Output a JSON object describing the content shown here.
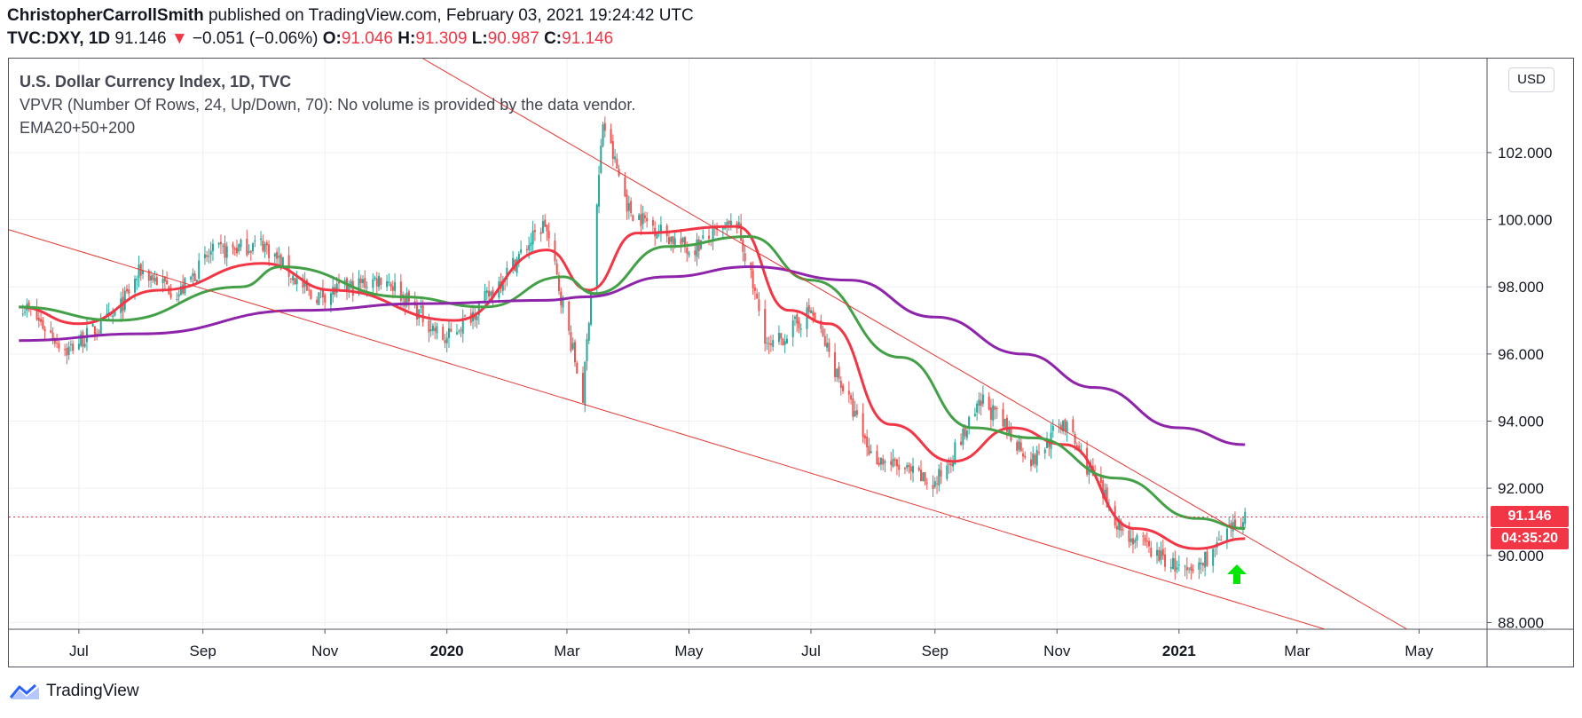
{
  "header": {
    "author": "ChristopherCarrollSmith",
    "published": "published on TradingView.com, February 03, 2021 19:24:42 UTC",
    "symbol": "TVC:DXY, 1D",
    "last": "91.146",
    "change_arrow": "▼",
    "change": "−0.051 (−0.06%)",
    "o_label": "O:",
    "o_value": "91.046",
    "h_label": "H:",
    "h_value": "91.309",
    "l_label": "L:",
    "l_value": "90.987",
    "c_label": "C:",
    "c_value": "91.146"
  },
  "legend": {
    "title": "U.S. Dollar Currency Index, 1D, TVC",
    "vpvr": "VPVR (Number Of Rows, 24, Up/Down, 70): No volume is provided by the data vendor.",
    "ema": "EMA20+50+200"
  },
  "currency_button": "USD",
  "price_tag": "91.146",
  "countdown_tag": "04:35:20",
  "brand": "TradingView",
  "colors": {
    "candle_up": "#26a69a",
    "candle_down": "#ef5350",
    "ema20": "#f23645",
    "ema50": "#43a047",
    "ema200": "#8e24aa",
    "trendline": "#e53935",
    "arrow": "#00e600"
  },
  "chart_data": {
    "type": "candlestick",
    "x_ticks": [
      "Jul",
      "Sep",
      "Nov",
      "2020",
      "Mar",
      "May",
      "Jul",
      "Sep",
      "Nov",
      "2021",
      "Mar",
      "May"
    ],
    "y_ticks": [
      "102.000",
      "100.000",
      "98.000",
      "96.000",
      "94.000",
      "92.000",
      "90.000",
      "88.000"
    ],
    "ylim": [
      87.8,
      104.8
    ],
    "close_approx": [
      {
        "date": "2019-06-01",
        "value": 97.6
      },
      {
        "date": "2019-06-25",
        "value": 96.1
      },
      {
        "date": "2019-07-20",
        "value": 97.2
      },
      {
        "date": "2019-08-01",
        "value": 98.5
      },
      {
        "date": "2019-08-20",
        "value": 97.8
      },
      {
        "date": "2019-09-05",
        "value": 99.0
      },
      {
        "date": "2019-10-01",
        "value": 99.3
      },
      {
        "date": "2019-10-25",
        "value": 97.7
      },
      {
        "date": "2019-11-15",
        "value": 98.0
      },
      {
        "date": "2019-12-01",
        "value": 98.3
      },
      {
        "date": "2019-12-31",
        "value": 96.4
      },
      {
        "date": "2020-01-20",
        "value": 97.6
      },
      {
        "date": "2020-02-19",
        "value": 99.9
      },
      {
        "date": "2020-03-09",
        "value": 94.7
      },
      {
        "date": "2020-03-19",
        "value": 102.9
      },
      {
        "date": "2020-04-01",
        "value": 100.3
      },
      {
        "date": "2020-05-01",
        "value": 99.1
      },
      {
        "date": "2020-05-25",
        "value": 99.9
      },
      {
        "date": "2020-06-10",
        "value": 96.1
      },
      {
        "date": "2020-07-01",
        "value": 97.3
      },
      {
        "date": "2020-07-31",
        "value": 93.0
      },
      {
        "date": "2020-09-01",
        "value": 92.1
      },
      {
        "date": "2020-09-25",
        "value": 94.6
      },
      {
        "date": "2020-10-20",
        "value": 92.8
      },
      {
        "date": "2020-11-04",
        "value": 94.0
      },
      {
        "date": "2020-12-04",
        "value": 90.7
      },
      {
        "date": "2021-01-06",
        "value": 89.4
      },
      {
        "date": "2021-02-03",
        "value": 91.146
      }
    ],
    "series": [
      {
        "name": "EMA20",
        "values": [
          {
            "date": "2019-06-01",
            "value": 97.4
          },
          {
            "date": "2019-07-01",
            "value": 96.9
          },
          {
            "date": "2019-08-10",
            "value": 97.9
          },
          {
            "date": "2019-10-01",
            "value": 98.7
          },
          {
            "date": "2019-11-05",
            "value": 97.9
          },
          {
            "date": "2020-01-05",
            "value": 97.0
          },
          {
            "date": "2020-02-20",
            "value": 99.1
          },
          {
            "date": "2020-03-12",
            "value": 97.9
          },
          {
            "date": "2020-04-05",
            "value": 99.6
          },
          {
            "date": "2020-05-25",
            "value": 99.8
          },
          {
            "date": "2020-06-20",
            "value": 97.3
          },
          {
            "date": "2020-07-10",
            "value": 96.9
          },
          {
            "date": "2020-08-10",
            "value": 93.9
          },
          {
            "date": "2020-09-10",
            "value": 92.8
          },
          {
            "date": "2020-10-10",
            "value": 93.8
          },
          {
            "date": "2020-11-05",
            "value": 93.3
          },
          {
            "date": "2020-12-10",
            "value": 90.8
          },
          {
            "date": "2021-01-10",
            "value": 90.2
          },
          {
            "date": "2021-02-03",
            "value": 90.5
          }
        ]
      },
      {
        "name": "EMA50",
        "values": [
          {
            "date": "2019-06-01",
            "value": 97.4
          },
          {
            "date": "2019-07-20",
            "value": 97.0
          },
          {
            "date": "2019-09-20",
            "value": 98.0
          },
          {
            "date": "2019-10-10",
            "value": 98.6
          },
          {
            "date": "2019-12-10",
            "value": 97.7
          },
          {
            "date": "2020-01-20",
            "value": 97.4
          },
          {
            "date": "2020-02-28",
            "value": 98.3
          },
          {
            "date": "2020-03-15",
            "value": 97.8
          },
          {
            "date": "2020-04-20",
            "value": 99.2
          },
          {
            "date": "2020-05-31",
            "value": 99.5
          },
          {
            "date": "2020-07-01",
            "value": 98.2
          },
          {
            "date": "2020-08-15",
            "value": 95.9
          },
          {
            "date": "2020-09-20",
            "value": 93.8
          },
          {
            "date": "2020-10-20",
            "value": 93.5
          },
          {
            "date": "2020-12-01",
            "value": 92.3
          },
          {
            "date": "2021-01-10",
            "value": 91.1
          },
          {
            "date": "2021-02-03",
            "value": 90.8
          }
        ]
      },
      {
        "name": "EMA200",
        "values": [
          {
            "date": "2019-06-01",
            "value": 96.4
          },
          {
            "date": "2019-08-01",
            "value": 96.6
          },
          {
            "date": "2019-10-20",
            "value": 97.3
          },
          {
            "date": "2019-12-20",
            "value": 97.5
          },
          {
            "date": "2020-02-20",
            "value": 97.6
          },
          {
            "date": "2020-03-10",
            "value": 97.7
          },
          {
            "date": "2020-04-20",
            "value": 98.3
          },
          {
            "date": "2020-06-01",
            "value": 98.6
          },
          {
            "date": "2020-07-20",
            "value": 98.2
          },
          {
            "date": "2020-09-01",
            "value": 97.1
          },
          {
            "date": "2020-10-15",
            "value": 96.0
          },
          {
            "date": "2020-11-20",
            "value": 95.0
          },
          {
            "date": "2021-01-01",
            "value": 93.8
          },
          {
            "date": "2021-02-03",
            "value": 93.3
          }
        ]
      }
    ],
    "trendlines": [
      {
        "from": {
          "date": "2019-05-27",
          "value": 99.7
        },
        "to": {
          "date": "2021-03-15",
          "value": 87.8
        }
      },
      {
        "from": {
          "date": "2019-12-20",
          "value": 104.8
        },
        "to": {
          "date": "2021-04-25",
          "value": 87.8
        }
      }
    ],
    "last_price_line": 91.146,
    "grid": true,
    "legend_position": "top-left"
  }
}
